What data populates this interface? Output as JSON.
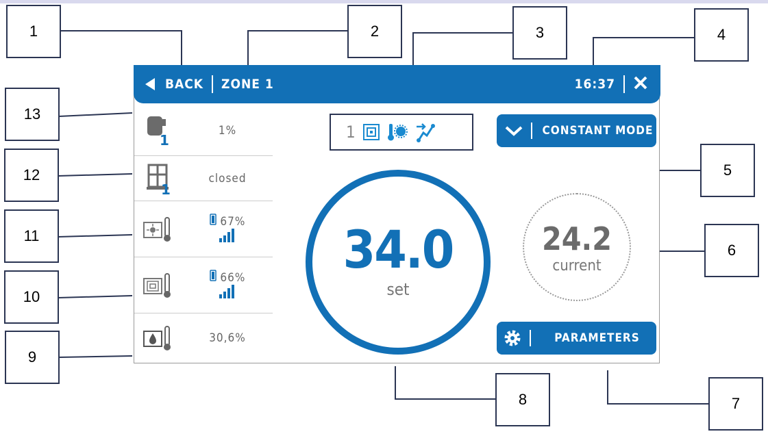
{
  "callouts": [
    "1",
    "2",
    "3",
    "4",
    "5",
    "6",
    "7",
    "8",
    "9",
    "10",
    "11",
    "12",
    "13"
  ],
  "header": {
    "back_label": "BACK",
    "zone_label": "ZONE 1",
    "time": "16:37",
    "close_icon": "close-icon"
  },
  "sidebar": {
    "actuator": {
      "icon": "actuator-icon",
      "index": "1",
      "value": "1%"
    },
    "window": {
      "icon": "window-sensor-icon",
      "index": "1",
      "value": "closed"
    },
    "room_sensor": {
      "icon": "room-sensor-thermometer-icon",
      "battery": "67%",
      "signal": "signal-strength-icon"
    },
    "floor_sensor": {
      "icon": "floor-sensor-thermometer-icon",
      "battery": "66%",
      "signal": "signal-strength-icon"
    },
    "humidity": {
      "icon": "humidity-thermometer-icon",
      "value": "30,6%"
    }
  },
  "zone_status": {
    "number": "1",
    "icons": [
      "floor-heating-icon",
      "thermometer-sun-icon",
      "schedule-arrow-icon"
    ]
  },
  "mode_button": {
    "label": "CONSTANT MODE"
  },
  "set_temp": {
    "value": "34.0",
    "label": "set"
  },
  "current_temp": {
    "value": "24.2",
    "label": "current"
  },
  "parameters_button": {
    "label": "PARAMETERS"
  },
  "colors": {
    "accent": "#1270b6",
    "text_gray": "#666666",
    "callout_border": "#2b3553"
  }
}
